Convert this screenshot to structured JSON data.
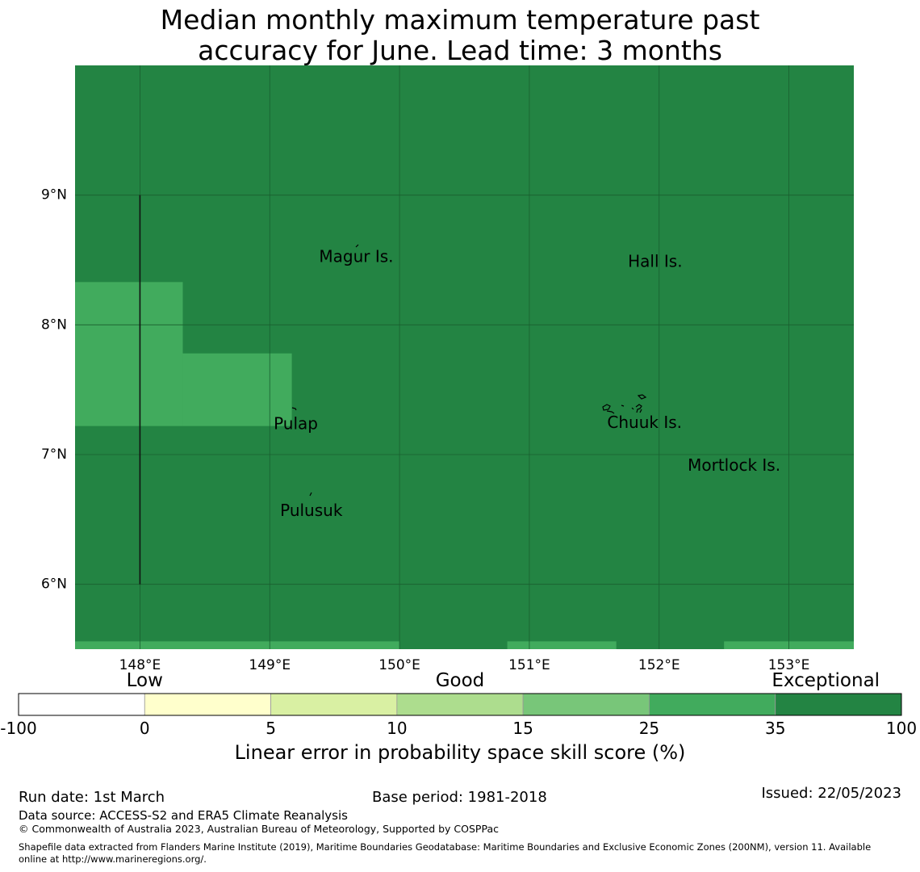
{
  "title": {
    "line1": "Median monthly maximum temperature past",
    "line2": "accuracy for June. Lead time: 3 months"
  },
  "map": {
    "lon_range": [
      147.5,
      153.5
    ],
    "lat_range": [
      5.5,
      10.0
    ],
    "lon_ticks": [
      {
        "value": 148,
        "label": "148°E"
      },
      {
        "value": 149,
        "label": "149°E"
      },
      {
        "value": 150,
        "label": "150°E"
      },
      {
        "value": 151,
        "label": "151°E"
      },
      {
        "value": 152,
        "label": "152°E"
      },
      {
        "value": 153,
        "label": "153°E"
      }
    ],
    "lat_ticks": [
      {
        "value": 9,
        "label": "9°N"
      },
      {
        "value": 8,
        "label": "8°N"
      },
      {
        "value": 7,
        "label": "7°N"
      },
      {
        "value": 6,
        "label": "6°N"
      }
    ],
    "background_color": "#238443",
    "gridline_color": "#1a5e2f",
    "skill_cells_25_35": [
      {
        "lon": [
          147.5,
          148.33
        ],
        "lat": [
          7.22,
          8.33
        ]
      },
      {
        "lon": [
          148.33,
          149.17
        ],
        "lat": [
          7.22,
          7.78
        ]
      },
      {
        "lon": [
          147.5,
          150.0
        ],
        "lat": [
          5.5,
          5.56
        ]
      },
      {
        "lon": [
          150.83,
          151.67
        ],
        "lat": [
          5.5,
          5.56
        ]
      },
      {
        "lon": [
          152.5,
          153.5
        ],
        "lat": [
          5.5,
          5.56
        ]
      }
    ],
    "boundary_line": {
      "lon": 148.0,
      "lat": [
        6.0,
        9.0
      ]
    },
    "places": [
      {
        "name": "Magur Is.",
        "lon": 149.38,
        "lat": 8.52
      },
      {
        "name": "Hall Is.",
        "lon": 151.76,
        "lat": 8.48
      },
      {
        "name": "Pulap",
        "lon": 149.03,
        "lat": 7.23
      },
      {
        "name": "Chuuk Is.",
        "lon": 151.6,
        "lat": 7.24
      },
      {
        "name": "Mortlock Is.",
        "lon": 152.22,
        "lat": 6.91
      },
      {
        "name": "Pulusuk",
        "lon": 149.08,
        "lat": 6.56
      }
    ]
  },
  "colorbar": {
    "category_labels": [
      {
        "label": "Low",
        "at_index": 1
      },
      {
        "label": "Good",
        "at_index": 3.5
      },
      {
        "label": "Exceptional",
        "at_index": 6.4
      }
    ],
    "bins": [
      {
        "from": "-100",
        "to": "0",
        "color": "#ffffff"
      },
      {
        "from": "0",
        "to": "5",
        "color": "#ffffcc"
      },
      {
        "from": "5",
        "to": "10",
        "color": "#d9f0a3"
      },
      {
        "from": "10",
        "to": "15",
        "color": "#addd8e"
      },
      {
        "from": "15",
        "to": "25",
        "color": "#78c679"
      },
      {
        "from": "25",
        "to": "35",
        "color": "#41ab5d"
      },
      {
        "from": "35",
        "to": "100",
        "color": "#238443"
      }
    ],
    "tick_labels": [
      "-100",
      "0",
      "5",
      "10",
      "15",
      "25",
      "35",
      "100"
    ],
    "title": "Linear error in probability space skill score (%)"
  },
  "footer": {
    "run_date": "Run date: 1st March",
    "base_period": "Base period: 1981-2018",
    "issued": "Issued: 22/05/2023",
    "data_source": "Data source: ACCESS-S2 and ERA5 Climate Reanalysis",
    "copyright": "© Commonwealth of Australia 2023, Australian Bureau of Meteorology, Supported by COSPPac",
    "shapefile_line1": "Shapefile data extracted from Flanders Marine Institute (2019), Maritime Boundaries Geodatabase: Maritime Boundaries and Exclusive Economic Zones (200NM), version 11. Available",
    "shapefile_line2": "online at http://www.marineregions.org/."
  }
}
